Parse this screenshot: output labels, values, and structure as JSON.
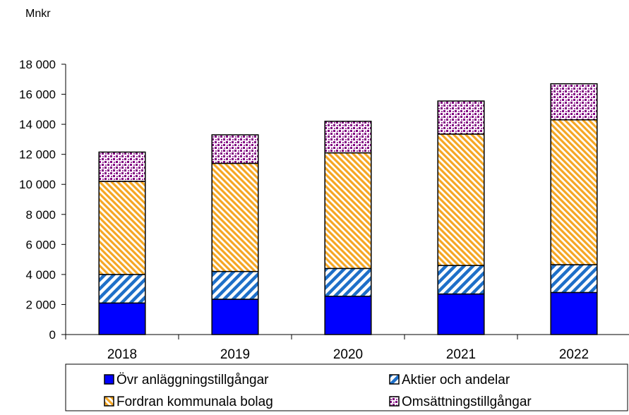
{
  "chart_data": {
    "type": "bar",
    "stacked": true,
    "unit_label": "Mnkr",
    "categories": [
      "2018",
      "2019",
      "2020",
      "2021",
      "2022"
    ],
    "ylim": [
      0,
      18000
    ],
    "yticks": [
      0,
      2000,
      4000,
      6000,
      8000,
      10000,
      12000,
      14000,
      16000,
      18000
    ],
    "ytick_labels": [
      "0",
      "2 000",
      "4 000",
      "6 000",
      "8 000",
      "10 000",
      "12 000",
      "14 000",
      "16 000",
      "18 000"
    ],
    "grid": false,
    "legend_position": "bottom",
    "series": [
      {
        "name": "Övr anläggningstillgångar",
        "values": [
          2100,
          2350,
          2550,
          2700,
          2800
        ],
        "color": "#0000ff",
        "pattern": "solid"
      },
      {
        "name": "Aktier och andelar",
        "values": [
          1900,
          1850,
          1850,
          1900,
          1850
        ],
        "color": "#1e6fc8",
        "pattern": "diagonal-stripes"
      },
      {
        "name": "Fordran kommunala bolag",
        "values": [
          6200,
          7200,
          7700,
          8750,
          9650
        ],
        "color": "#f5a623",
        "pattern": "diagonal-hatch"
      },
      {
        "name": "Omsättningstillgångar",
        "values": [
          1950,
          1900,
          2100,
          2200,
          2400
        ],
        "color": "#800080",
        "pattern": "dots"
      }
    ]
  }
}
